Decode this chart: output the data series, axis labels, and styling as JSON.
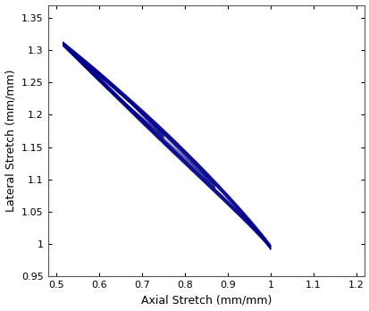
{
  "xlabel": "Axial Stretch (mm/mm)",
  "ylabel": "Lateral Stretch (mm/mm)",
  "xlim": [
    0.48,
    1.22
  ],
  "ylim": [
    0.95,
    1.37
  ],
  "xticks": [
    0.5,
    0.6,
    0.7,
    0.8,
    0.9,
    1.0,
    1.1,
    1.2
  ],
  "yticks": [
    0.95,
    1.0,
    1.05,
    1.1,
    1.15,
    1.2,
    1.25,
    1.3,
    1.35
  ],
  "xtick_labels": [
    "0.5",
    "0.6",
    "0.7",
    "0.8",
    "0.9",
    "1",
    "1.1",
    "1.2"
  ],
  "ytick_labels": [
    "0.95",
    "1",
    "1.05",
    "1.1",
    "1.15",
    "1.2",
    "1.25",
    "1.3",
    "1.35"
  ],
  "line_color": "#00008B",
  "line_alpha": 0.75,
  "line_width": 0.7,
  "num_cycles": 10,
  "background_color": "#ffffff",
  "figsize": [
    4.14,
    3.48
  ],
  "dpi": 100,
  "font_size_label": 9,
  "font_size_tick": 8
}
